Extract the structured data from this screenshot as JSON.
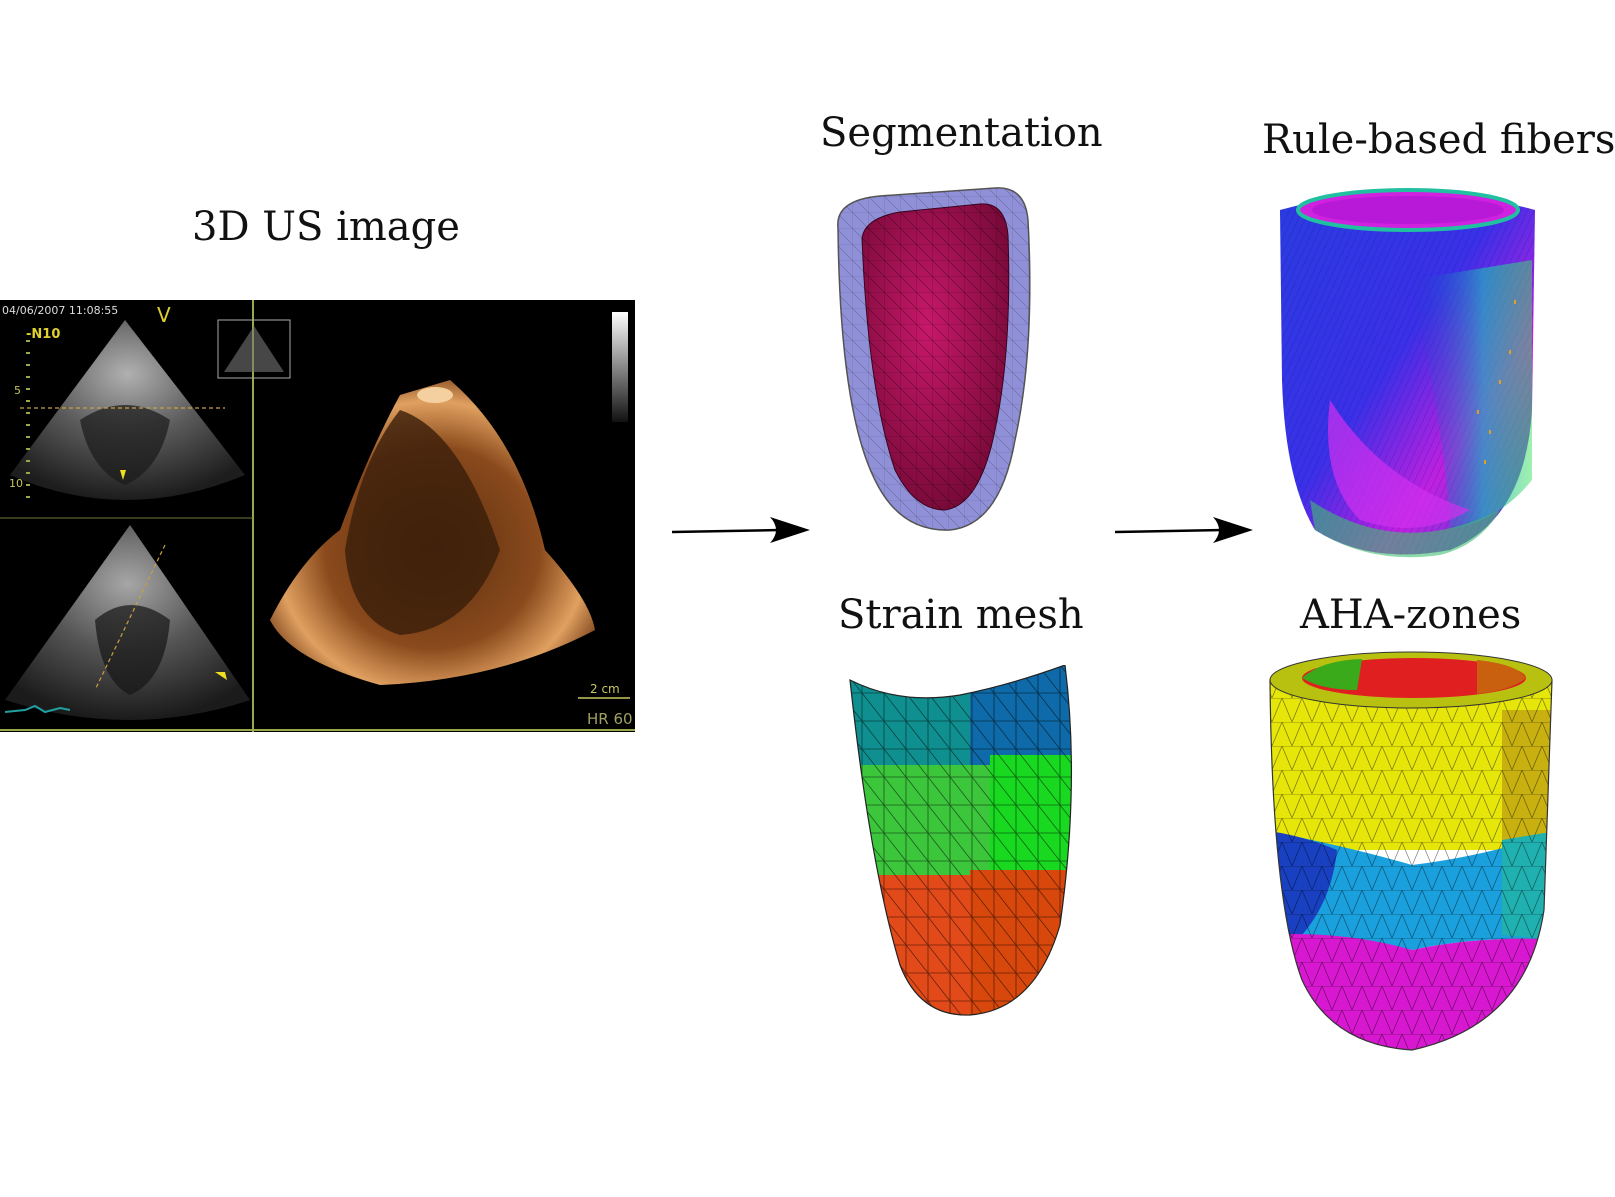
{
  "titles": {
    "us_image": "3D US image",
    "segmentation": "Segmentation",
    "fibers": "Rule-based fibers",
    "strain_mesh": "Strain mesh",
    "aha_zones": "AHA-zones"
  },
  "ultrasound": {
    "timestamp": "04/06/2007 11:08:55",
    "view_label": "V",
    "probe_label": "-N10",
    "depth_5": "5",
    "depth_10": "10",
    "scale_bar": "2 cm",
    "heart_rate": "HR 60"
  },
  "colors": {
    "segmentation_outer": "#8f8fd6",
    "segmentation_inner": "#b01255",
    "strain_top": [
      "#0f8f8f",
      "#0e6aa8"
    ],
    "strain_mid": [
      "#3cc63c",
      "#18d820"
    ],
    "strain_bottom": [
      "#e34a1a",
      "#d8480c"
    ],
    "aha_yellow": "#e6e60a",
    "aha_blue": "#1aa0dd",
    "aha_magenta": "#d818d0",
    "aha_red": "#e02020",
    "aha_green": "#3aaa1a",
    "fiber_blue": "#2a3ce0",
    "fiber_magenta": "#c020e0"
  }
}
